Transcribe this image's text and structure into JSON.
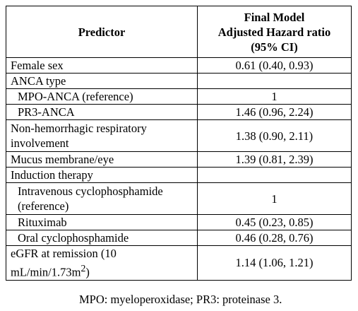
{
  "table": {
    "header": {
      "predictor": "Predictor",
      "hr_lines": [
        "Final Model",
        "Adjusted Hazard ratio",
        "(95% CI)"
      ]
    },
    "rows": [
      {
        "predictor": "Female sex",
        "value": "0.61 (0.40, 0.93)"
      },
      {
        "predictor": "ANCA type",
        "value": ""
      },
      {
        "predictor": "MPO-ANCA (reference)",
        "value": "1"
      },
      {
        "predictor": "PR3-ANCA",
        "value": "1.46 (0.96, 2.24)"
      },
      {
        "predictor": "Non-hemorrhagic respiratory involvement",
        "value": "1.38 (0.90, 2.11)"
      },
      {
        "predictor": "Mucus membrane/eye",
        "value": "1.39 (0.81, 2.39)"
      },
      {
        "predictor": "Induction therapy",
        "value": ""
      },
      {
        "predictor": "Intravenous cyclophosphamide (reference)",
        "value": "1"
      },
      {
        "predictor": "Rituximab",
        "value": "0.45 (0.23, 0.85)"
      },
      {
        "predictor": "Oral cyclophosphamide",
        "value": "0.46 (0.28, 0.76)"
      },
      {
        "predictor_prefix": "eGFR at remission (10 mL/min/1.73m",
        "predictor_sup": "2",
        "predictor_suffix": ")",
        "value": "1.14 (1.06, 1.21)"
      }
    ]
  },
  "footnote": "MPO: myeloperoxidase; PR3: proteinase 3."
}
